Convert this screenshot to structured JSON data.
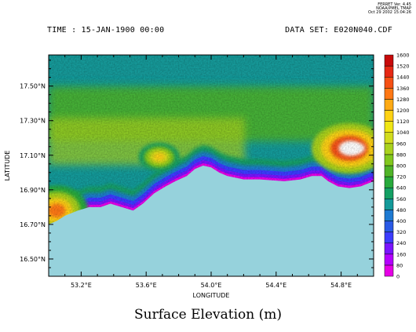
{
  "header": {
    "time_label": "TIME : 15-JAN-1900 00:00",
    "dataset_label": "DATA SET: E020N040.CDF",
    "ferret_line1": "FERRET Ver. 4.45",
    "ferret_line2": "NOAA/PMEL TMAP",
    "ferret_line3": "Oct 29 2002 15:04:26"
  },
  "caption": "Surface Elevation (m)",
  "chart_data": {
    "type": "heatmap",
    "title": "Surface Elevation (m)",
    "xlabel": "LONGITUDE",
    "ylabel": "LATITUDE",
    "xlim": [
      53.0,
      55.0
    ],
    "ylim": [
      16.4,
      17.68
    ],
    "x_ticks": [
      {
        "value": 53.2,
        "label": "53.2°E"
      },
      {
        "value": 53.6,
        "label": "53.6°E"
      },
      {
        "value": 54.0,
        "label": "54.0°E"
      },
      {
        "value": 54.4,
        "label": "54.4°E"
      },
      {
        "value": 54.8,
        "label": "54.8°E"
      }
    ],
    "y_ticks": [
      {
        "value": 16.5,
        "label": "16.50°N"
      },
      {
        "value": 16.7,
        "label": "16.70°N"
      },
      {
        "value": 16.9,
        "label": "16.90°N"
      },
      {
        "value": 17.1,
        "label": "17.10°N"
      },
      {
        "value": 17.3,
        "label": "17.30°N"
      },
      {
        "value": 17.5,
        "label": "17.50°N"
      }
    ],
    "colorbar": {
      "levels": [
        0,
        80,
        160,
        240,
        320,
        400,
        480,
        560,
        640,
        720,
        800,
        880,
        960,
        1040,
        1120,
        1200,
        1280,
        1360,
        1440,
        1520,
        1600
      ],
      "colors": [
        "#e600e6",
        "#b400ff",
        "#7a14ff",
        "#3c3cff",
        "#2a5ae6",
        "#1e7ad2",
        "#149a9a",
        "#14a064",
        "#28aa3c",
        "#50b428",
        "#82c81e",
        "#aad21e",
        "#d2dc1e",
        "#f0e614",
        "#ffd214",
        "#ffaa14",
        "#ff7814",
        "#f55014",
        "#e62814",
        "#c80a0a"
      ],
      "above_color": "#ffffff"
    },
    "ocean_color": "#96d2dc",
    "coastline": [
      [
        53.0,
        16.7
      ],
      [
        53.05,
        16.72
      ],
      [
        53.1,
        16.75
      ],
      [
        53.18,
        16.78
      ],
      [
        53.25,
        16.8
      ],
      [
        53.32,
        16.8
      ],
      [
        53.38,
        16.82
      ],
      [
        53.45,
        16.8
      ],
      [
        53.52,
        16.78
      ],
      [
        53.58,
        16.82
      ],
      [
        53.65,
        16.88
      ],
      [
        53.72,
        16.92
      ],
      [
        53.78,
        16.95
      ],
      [
        53.85,
        16.98
      ],
      [
        53.9,
        17.02
      ],
      [
        53.95,
        17.04
      ],
      [
        54.0,
        17.03
      ],
      [
        54.05,
        17.0
      ],
      [
        54.1,
        16.98
      ],
      [
        54.15,
        16.97
      ],
      [
        54.2,
        16.96
      ],
      [
        54.3,
        16.96
      ],
      [
        54.45,
        16.95
      ],
      [
        54.55,
        16.96
      ],
      [
        54.62,
        16.98
      ],
      [
        54.68,
        16.98
      ],
      [
        54.72,
        16.95
      ],
      [
        54.78,
        16.92
      ],
      [
        54.85,
        16.91
      ],
      [
        54.92,
        16.92
      ],
      [
        55.0,
        16.95
      ]
    ],
    "terrain_features": [
      {
        "name": "low-coastal",
        "value": 120
      },
      {
        "name": "western-highland",
        "lon": 53.05,
        "lat": 16.78,
        "value": 1300
      },
      {
        "name": "central-highland",
        "lon": 53.68,
        "lat": 17.09,
        "value": 1150
      },
      {
        "name": "eastern-highland",
        "lon": 54.85,
        "lat": 17.14,
        "value": 1620
      },
      {
        "name": "northern-plateau",
        "lat": 17.6,
        "value": 520
      }
    ]
  }
}
